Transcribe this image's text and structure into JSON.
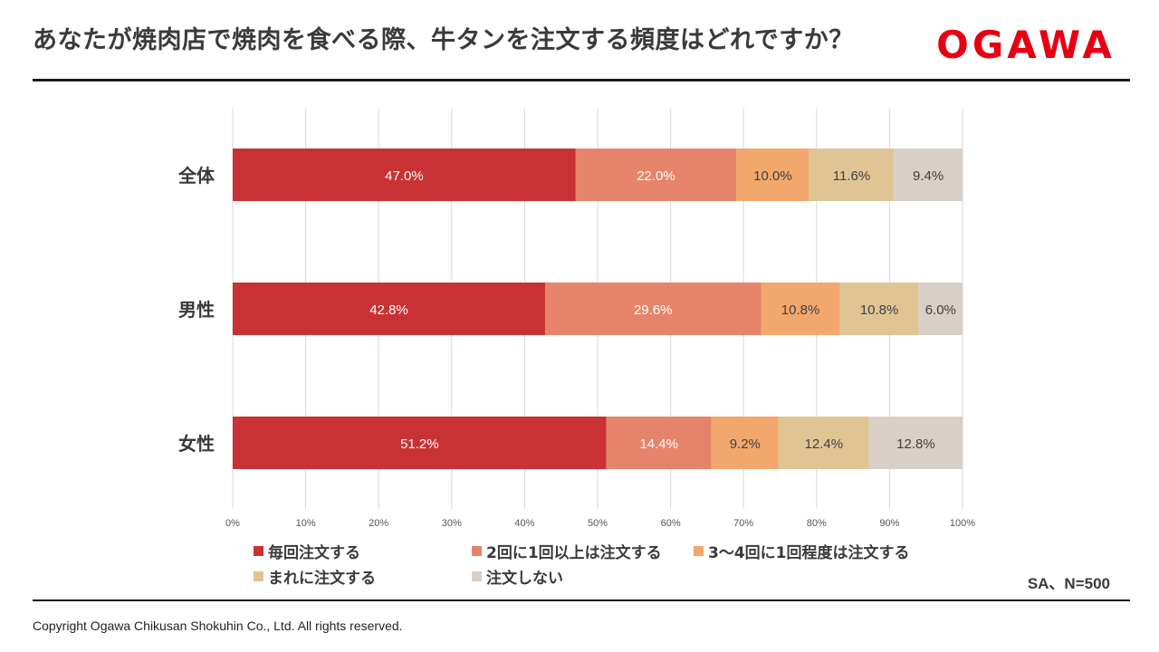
{
  "header": {
    "title": "あなたが焼肉店で焼肉を食べる際、牛タンを注文する頻度はどれですか？",
    "logo_text": "OGAWA",
    "logo_color": "#e60012"
  },
  "chart_data": {
    "type": "bar",
    "orientation": "horizontal",
    "stacked": "percent",
    "categories": [
      "全体",
      "男性",
      "女性"
    ],
    "series": [
      {
        "name": "毎回注文する",
        "color": "#c93234",
        "label_color": "#ffffff",
        "values": [
          47.0,
          42.8,
          51.2
        ]
      },
      {
        "name": "2回に1回以上は注文する",
        "color": "#e5846a",
        "label_color": "#ffffff",
        "values": [
          22.0,
          29.6,
          14.4
        ]
      },
      {
        "name": "3～4回に1回程度は注文する",
        "color": "#f2a86d",
        "label_color": "#404040",
        "values": [
          10.0,
          10.8,
          9.2
        ]
      },
      {
        "name": "まれに注文する",
        "color": "#e0c594",
        "label_color": "#404040",
        "values": [
          11.6,
          10.8,
          12.4
        ]
      },
      {
        "name": "注文しない",
        "color": "#d9cfc6",
        "label_color": "#404040",
        "values": [
          9.4,
          6.0,
          12.8
        ]
      }
    ],
    "xlim": [
      0,
      100
    ],
    "xticks": [
      "0%",
      "10%",
      "20%",
      "30%",
      "40%",
      "50%",
      "60%",
      "70%",
      "80%",
      "90%",
      "100%"
    ],
    "grid": true,
    "legend_position": "bottom"
  },
  "footer": {
    "note": "SA、N=500",
    "copyright": "Copyright Ogawa Chikusan Shokuhin Co., Ltd. All rights reserved."
  }
}
